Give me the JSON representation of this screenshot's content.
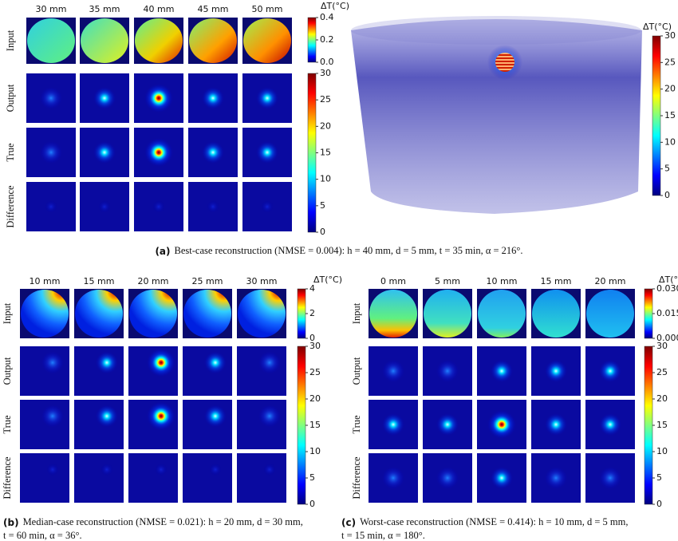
{
  "panels": [
    {
      "column_labels": [
        "30 mm",
        "35 mm",
        "40 mm",
        "45 mm",
        "50 mm"
      ],
      "row_labels": [
        "Input",
        "Output",
        "True",
        "Difference"
      ],
      "colorbar_title": "ΔT(°C)",
      "input_ticks": [
        "0.0",
        "0.2",
        "0.4"
      ],
      "output_ticks": [
        "0",
        "5",
        "10",
        "15",
        "20",
        "25",
        "30"
      ],
      "caption_tag": "(a)",
      "caption": [
        "Best-case reconstruction (NMSE = 0.004): h = 40 mm, d = 5 mm, t = 35 min, α = 216°."
      ]
    },
    {
      "column_labels": [
        "10 mm",
        "15 mm",
        "20 mm",
        "25 mm",
        "30 mm"
      ],
      "row_labels": [
        "Input",
        "Output",
        "True",
        "Difference"
      ],
      "colorbar_title": "ΔT(°C)",
      "input_ticks": [
        "0",
        "2",
        "4"
      ],
      "output_ticks": [
        "0",
        "5",
        "10",
        "15",
        "20",
        "25",
        "30"
      ],
      "caption_tag": "(b)",
      "caption": [
        "Median-case reconstruction (NMSE = 0.021): h = 20 mm, d = 30 mm,",
        "t = 60 min, α = 36°."
      ]
    },
    {
      "column_labels": [
        "0 mm",
        "5 mm",
        "10 mm",
        "15 mm",
        "20 mm"
      ],
      "row_labels": [
        "Input",
        "Output",
        "True",
        "Difference"
      ],
      "colorbar_title": "ΔT(°C)",
      "input_ticks": [
        "0.000",
        "0.015",
        "0.030"
      ],
      "output_ticks": [
        "0",
        "5",
        "10",
        "15",
        "20",
        "25",
        "30"
      ],
      "caption_tag": "(c)",
      "caption": [
        "Worst-case reconstruction (NMSE = 0.414): h = 10 mm, d = 5 mm,",
        "t = 15 min, α = 180°."
      ]
    }
  ],
  "volume_colorbar": {
    "title": "ΔT(°C)",
    "ticks": [
      "0",
      "5",
      "10",
      "15",
      "20",
      "25",
      "30"
    ]
  }
}
